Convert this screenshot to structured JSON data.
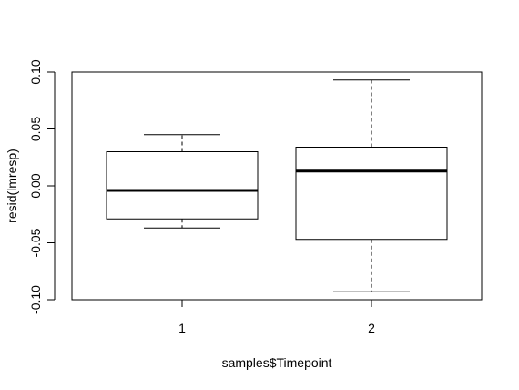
{
  "chart_data": {
    "type": "boxplot",
    "xlabel": "samples$Timepoint",
    "ylabel": "resid(lmresp)",
    "ylim": [
      -0.1,
      0.1
    ],
    "yticks": [
      "-0.10",
      "-0.05",
      "0.00",
      "0.05",
      "0.10"
    ],
    "ytick_values": [
      -0.1,
      -0.05,
      0.0,
      0.05,
      0.1
    ],
    "categories": [
      "1",
      "2"
    ],
    "boxes": [
      {
        "category": "1",
        "whisker_low": -0.037,
        "q1": -0.029,
        "median": -0.004,
        "q3": 0.03,
        "whisker_high": 0.045
      },
      {
        "category": "2",
        "whisker_low": -0.093,
        "q1": -0.047,
        "median": 0.013,
        "q3": 0.034,
        "whisker_high": 0.093
      }
    ],
    "grid": false,
    "legend": "none"
  }
}
